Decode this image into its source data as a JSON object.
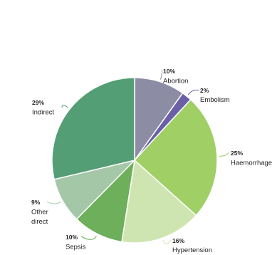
{
  "chart_data": {
    "type": "pie",
    "title": "",
    "slices": [
      {
        "label": "Abortion",
        "value": 10,
        "value_label": "10%",
        "color": "#8c8ca4"
      },
      {
        "label": "Embolism",
        "value": 2,
        "value_label": "2%",
        "color": "#6b5fa8"
      },
      {
        "label": "Haemorrhage",
        "value": 25,
        "value_label": "25%",
        "color": "#9fcf65"
      },
      {
        "label": "Hypertension",
        "value": 16,
        "value_label": "16%",
        "color": "#cfe5b1"
      },
      {
        "label": "Sepsis",
        "value": 10,
        "value_label": "10%",
        "color": "#6daf5a"
      },
      {
        "label_lines": [
          "Other",
          "direct"
        ],
        "value": 9,
        "value_label": "9%",
        "color": "#a4c7a7"
      },
      {
        "label": "Indirect",
        "value": 29,
        "value_label": "29%",
        "color": "#549e75"
      }
    ],
    "start_angle_deg": 0,
    "direction": "clockwise",
    "legend": "none"
  }
}
